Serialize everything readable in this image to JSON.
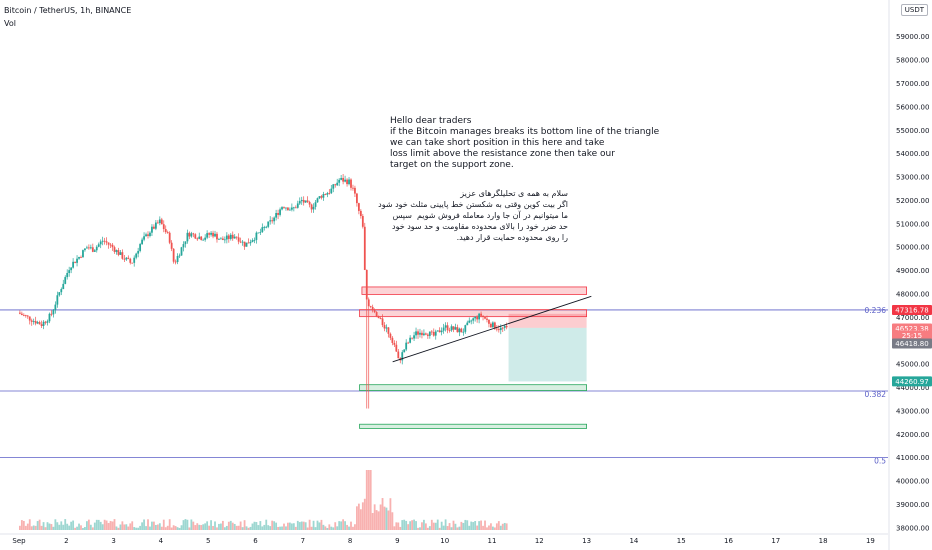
{
  "header": {
    "symbol": "Bitcoin / TetherUS, 1h, BINANCE",
    "volume_label": "Vol",
    "currency": "USDT"
  },
  "notes": {
    "english": "Hello dear traders\nif the Bitcoin manages breaks its bottom line of the triangle\nwe can take short position in this here and take\nloss limit above the resistance zone then take our\ntarget on the support zone.",
    "persian": "سلام به همه ی تحلیلگرهای عزیز\nاگر بیت کوین وقتی به شکستن خط پایینی مثلث خود شود\nما میتوانیم در آن جا وارد معامله فروش شویم  سپس\nحد ضرر خود را بالای محدوده مقاومت و حد سود خود\nرا روی محدوده حمایت قرار دهید."
  },
  "chart_data": {
    "type": "candlestick",
    "x_tick_labels": [
      "Sep",
      "2",
      "3",
      "4",
      "5",
      "6",
      "7",
      "8",
      "9",
      "10",
      "11",
      "12",
      "13",
      "14",
      "15",
      "16",
      "17",
      "18",
      "19"
    ],
    "y_tick_values": [
      38000,
      39000,
      40000,
      41000,
      42000,
      43000,
      44000,
      45000,
      46000,
      47000,
      48000,
      49000,
      50000,
      51000,
      52000,
      53000,
      54000,
      55000,
      56000,
      57000,
      58000,
      59000
    ],
    "y_range": [
      37650,
      60400
    ],
    "price_tags": [
      {
        "label": "47316.78",
        "value": 47316.78,
        "color": "#f23645"
      },
      {
        "label": "46523.38",
        "value": 46523.38,
        "color": "#f77c80"
      },
      {
        "label": "25:15",
        "value": 46223,
        "color": "#f77c80"
      },
      {
        "label": "46418.80",
        "value": 45880,
        "color": "#787b86"
      },
      {
        "label": "44260.97",
        "value": 44260.97,
        "color": "#26a69a"
      }
    ],
    "fib_levels": [
      {
        "label": "0.236",
        "value": 47316.78
      },
      {
        "label": "0.382",
        "value": 43850
      },
      {
        "label": "0.5",
        "value": 41000
      }
    ],
    "resistance_zones": [
      {
        "x_from": 7.25,
        "x_to": 12.0,
        "y_from": 47980,
        "y_to": 48300
      },
      {
        "x_from": 7.2,
        "x_to": 12.0,
        "y_from": 47030,
        "y_to": 47330
      }
    ],
    "support_zones": [
      {
        "x_from": 7.2,
        "x_to": 12.0,
        "y_from": 43870,
        "y_to": 44120
      },
      {
        "x_from": 7.2,
        "x_to": 12.0,
        "y_from": 42250,
        "y_to": 42430
      }
    ],
    "short_position": {
      "x_from": 10.35,
      "x_to": 12.0,
      "entry": 46550,
      "stop": 47150,
      "target": 44260
    },
    "trendline": {
      "x1": 7.9,
      "y1": 45100,
      "x2": 12.1,
      "y2": 47900
    },
    "price_path": [
      [
        0.0,
        47200
      ],
      [
        0.3,
        46900
      ],
      [
        0.5,
        46700
      ],
      [
        0.7,
        47100
      ],
      [
        0.9,
        48200
      ],
      [
        1.1,
        49200
      ],
      [
        1.3,
        49600
      ],
      [
        1.45,
        50000
      ],
      [
        1.6,
        49900
      ],
      [
        1.8,
        50300
      ],
      [
        2.0,
        50000
      ],
      [
        2.2,
        49600
      ],
      [
        2.4,
        49300
      ],
      [
        2.6,
        50200
      ],
      [
        2.8,
        50700
      ],
      [
        3.0,
        51100
      ],
      [
        3.2,
        50400
      ],
      [
        3.3,
        49300
      ],
      [
        3.4,
        49700
      ],
      [
        3.6,
        50600
      ],
      [
        3.9,
        50400
      ],
      [
        4.1,
        50600
      ],
      [
        4.3,
        50300
      ],
      [
        4.6,
        50500
      ],
      [
        4.8,
        50100
      ],
      [
        5.1,
        50600
      ],
      [
        5.4,
        51200
      ],
      [
        5.6,
        51800
      ],
      [
        5.8,
        51600
      ],
      [
        6.0,
        52000
      ],
      [
        6.2,
        51700
      ],
      [
        6.4,
        52200
      ],
      [
        6.6,
        52400
      ],
      [
        6.8,
        52900
      ],
      [
        7.0,
        52800
      ],
      [
        7.1,
        52400
      ],
      [
        7.2,
        51600
      ],
      [
        7.3,
        50900
      ],
      [
        7.35,
        48000
      ],
      [
        7.45,
        47400
      ],
      [
        7.6,
        47000
      ],
      [
        7.8,
        46500
      ],
      [
        7.95,
        45900
      ],
      [
        8.05,
        45100
      ],
      [
        8.2,
        45800
      ],
      [
        8.4,
        46300
      ],
      [
        8.6,
        46400
      ],
      [
        8.8,
        46200
      ],
      [
        9.0,
        46600
      ],
      [
        9.2,
        46500
      ],
      [
        9.4,
        46400
      ],
      [
        9.6,
        46900
      ],
      [
        9.8,
        47100
      ],
      [
        10.0,
        46700
      ],
      [
        10.1,
        46600
      ],
      [
        10.2,
        46500
      ],
      [
        10.3,
        46523
      ]
    ],
    "volume_pattern_note": "",
    "grid": false,
    "legend": "none"
  }
}
